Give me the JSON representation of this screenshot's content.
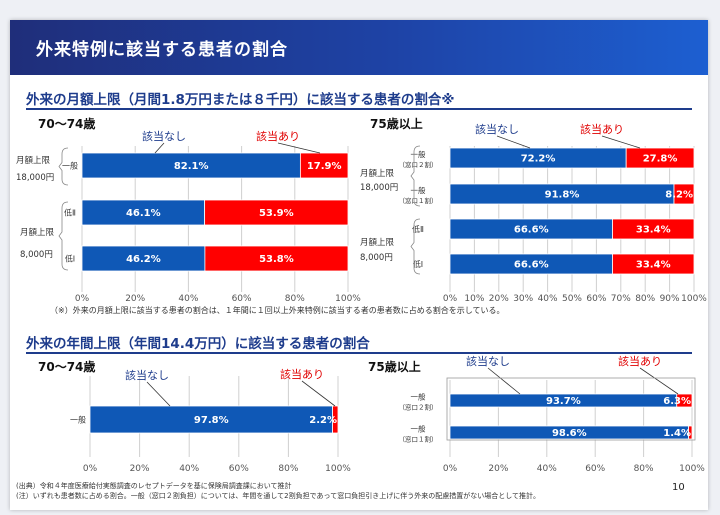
{
  "header": {
    "title": "外来特例に該当する患者の割合"
  },
  "section1": {
    "title": "外来の月額上限（月間1.8万円または８千円）に該当する患者の割合※"
  },
  "section2": {
    "title": "外来の年間上限（年間14.4万円）に該当する患者の割合"
  },
  "footnote_star": "（※）外来の月額上限に該当する患者の割合は、１年間に１回以上外来特例に該当する者の患者数に占める割合を示している。",
  "source_note": "(出典）令和４年度医療給付実態調査のレセプトデータを基に保険局調査課において推計",
  "remark_note": "(注）いずれも患者数に占める割合。一般（窓口２割負担）については、年間を通して2割負担であって窓口負担引き上げに伴う外来の配慮措置がない場合として推計。",
  "page_number": "10",
  "colors": {
    "target": "#0f58b6",
    "nontarget": "#ff0000",
    "heading": "#1e3c8c",
    "callout": "#1e3c8c",
    "callout_red": "#e00000"
  },
  "chart_data": [
    {
      "type": "bar",
      "orientation": "horizontal",
      "stacked": true,
      "title": "70〜74歳",
      "series_labels": {
        "gaitou_nashi": "該当なし",
        "gaitou_ari": "該当あり"
      },
      "groups": [
        {
          "label_lines": [
            "月額上限",
            "18,000円"
          ],
          "rows": [
            {
              "label": "一般",
              "gaitou_nashi": 82.1,
              "gaitou_ari": 17.9
            }
          ]
        },
        {
          "label_lines": [
            "月額上限",
            "8,000円"
          ],
          "rows": [
            {
              "label": "低Ⅱ",
              "gaitou_nashi": 46.1,
              "gaitou_ari": 53.9
            },
            {
              "label": "低Ⅰ",
              "gaitou_nashi": 46.2,
              "gaitou_ari": 53.8
            }
          ]
        }
      ],
      "x_ticks": [
        "0%",
        "20%",
        "40%",
        "60%",
        "80%",
        "100%"
      ],
      "xlim": [
        0,
        100
      ]
    },
    {
      "type": "bar",
      "orientation": "horizontal",
      "stacked": true,
      "title": "75歳以上",
      "series_labels": {
        "gaitou_nashi": "該当なし",
        "gaitou_ari": "該当あり"
      },
      "groups": [
        {
          "label_lines": [
            "月額上限",
            "18,000円"
          ],
          "rows": [
            {
              "label": "一般",
              "sublabel": "（窓口２割）",
              "gaitou_nashi": 72.2,
              "gaitou_ari": 27.8
            },
            {
              "label": "一般",
              "sublabel": "（窓口１割）",
              "gaitou_nashi": 91.8,
              "gaitou_ari": 8.2
            }
          ]
        },
        {
          "label_lines": [
            "月額上限",
            "8,000円"
          ],
          "rows": [
            {
              "label": "低Ⅱ",
              "gaitou_nashi": 66.6,
              "gaitou_ari": 33.4
            },
            {
              "label": "低Ⅰ",
              "gaitou_nashi": 66.6,
              "gaitou_ari": 33.4
            }
          ]
        }
      ],
      "x_ticks": [
        "0%",
        "10%",
        "20%",
        "30%",
        "40%",
        "50%",
        "60%",
        "70%",
        "80%",
        "90%",
        "100%"
      ],
      "xlim": [
        0,
        100
      ]
    },
    {
      "type": "bar",
      "orientation": "horizontal",
      "stacked": true,
      "title": "70〜74歳",
      "series_labels": {
        "gaitou_nashi": "該当なし",
        "gaitou_ari": "該当あり"
      },
      "groups": [
        {
          "label_lines": [],
          "rows": [
            {
              "label": "一般",
              "gaitou_nashi": 97.8,
              "gaitou_ari": 2.2
            }
          ]
        }
      ],
      "x_ticks": [
        "0%",
        "20%",
        "40%",
        "60%",
        "80%",
        "100%"
      ],
      "xlim": [
        0,
        100
      ]
    },
    {
      "type": "bar",
      "orientation": "horizontal",
      "stacked": true,
      "title": "75歳以上",
      "series_labels": {
        "gaitou_nashi": "該当なし",
        "gaitou_ari": "該当あり"
      },
      "groups": [
        {
          "label_lines": [],
          "rows": [
            {
              "label": "一般",
              "sublabel": "（窓口２割）",
              "gaitou_nashi": 93.7,
              "gaitou_ari": 6.3
            },
            {
              "label": "一般",
              "sublabel": "（窓口１割）",
              "gaitou_nashi": 98.6,
              "gaitou_ari": 1.4
            }
          ]
        }
      ],
      "x_ticks": [
        "0%",
        "20%",
        "40%",
        "60%",
        "80%",
        "100%"
      ],
      "xlim": [
        0,
        100
      ]
    }
  ]
}
